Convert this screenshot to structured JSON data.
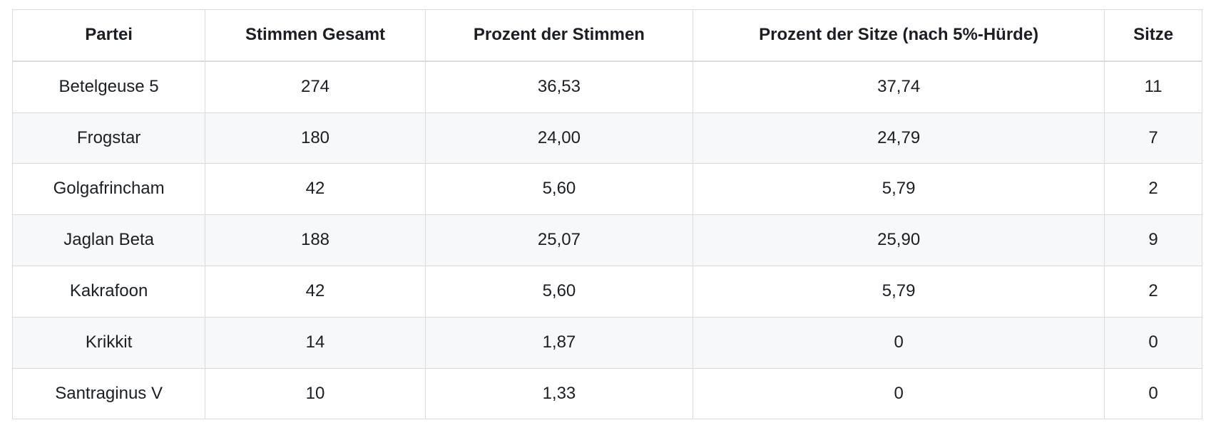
{
  "colors": {
    "background": "#ffffff",
    "border": "#d8dce1",
    "row_stripe": "#f6f8fa",
    "text": "#1b1f24"
  },
  "table": {
    "columns": [
      "Partei",
      "Stimmen Gesamt",
      "Prozent der Stimmen",
      "Prozent der Sitze (nach 5%-Hürde)",
      "Sitze"
    ],
    "rows": [
      [
        "Betelgeuse 5",
        "274",
        "36,53",
        "37,74",
        "11"
      ],
      [
        "Frogstar",
        "180",
        "24,00",
        "24,79",
        "7"
      ],
      [
        "Golgafrincham",
        "42",
        "5,60",
        "5,79",
        "2"
      ],
      [
        "Jaglan Beta",
        "188",
        "25,07",
        "25,90",
        "9"
      ],
      [
        "Kakrafoon",
        "42",
        "5,60",
        "5,79",
        "2"
      ],
      [
        "Krikkit",
        "14",
        "1,87",
        "0",
        "0"
      ],
      [
        "Santraginus V",
        "10",
        "1,33",
        "0",
        "0"
      ]
    ]
  },
  "chart_data": {
    "type": "table",
    "title": "",
    "columns": [
      "Partei",
      "Stimmen Gesamt",
      "Prozent der Stimmen",
      "Prozent der Sitze (nach 5%-Hürde)",
      "Sitze"
    ],
    "rows": [
      {
        "partei": "Betelgeuse 5",
        "stimmen_gesamt": 274,
        "prozent_der_stimmen": "36,53",
        "prozent_der_sitze": "37,74",
        "sitze": 11
      },
      {
        "partei": "Frogstar",
        "stimmen_gesamt": 180,
        "prozent_der_stimmen": "24,00",
        "prozent_der_sitze": "24,79",
        "sitze": 7
      },
      {
        "partei": "Golgafrincham",
        "stimmen_gesamt": 42,
        "prozent_der_stimmen": "5,60",
        "prozent_der_sitze": "5,79",
        "sitze": 2
      },
      {
        "partei": "Jaglan Beta",
        "stimmen_gesamt": 188,
        "prozent_der_stimmen": "25,07",
        "prozent_der_sitze": "25,90",
        "sitze": 9
      },
      {
        "partei": "Kakrafoon",
        "stimmen_gesamt": 42,
        "prozent_der_stimmen": "5,60",
        "prozent_der_sitze": "5,79",
        "sitze": 2
      },
      {
        "partei": "Krikkit",
        "stimmen_gesamt": 14,
        "prozent_der_stimmen": "1,87",
        "prozent_der_sitze": "0",
        "sitze": 0
      },
      {
        "partei": "Santraginus V",
        "stimmen_gesamt": 10,
        "prozent_der_stimmen": "1,33",
        "prozent_der_sitze": "0",
        "sitze": 0
      }
    ],
    "layout_hints": {
      "striped_rows": "even",
      "cell_alignment": "center",
      "grid": true
    }
  }
}
